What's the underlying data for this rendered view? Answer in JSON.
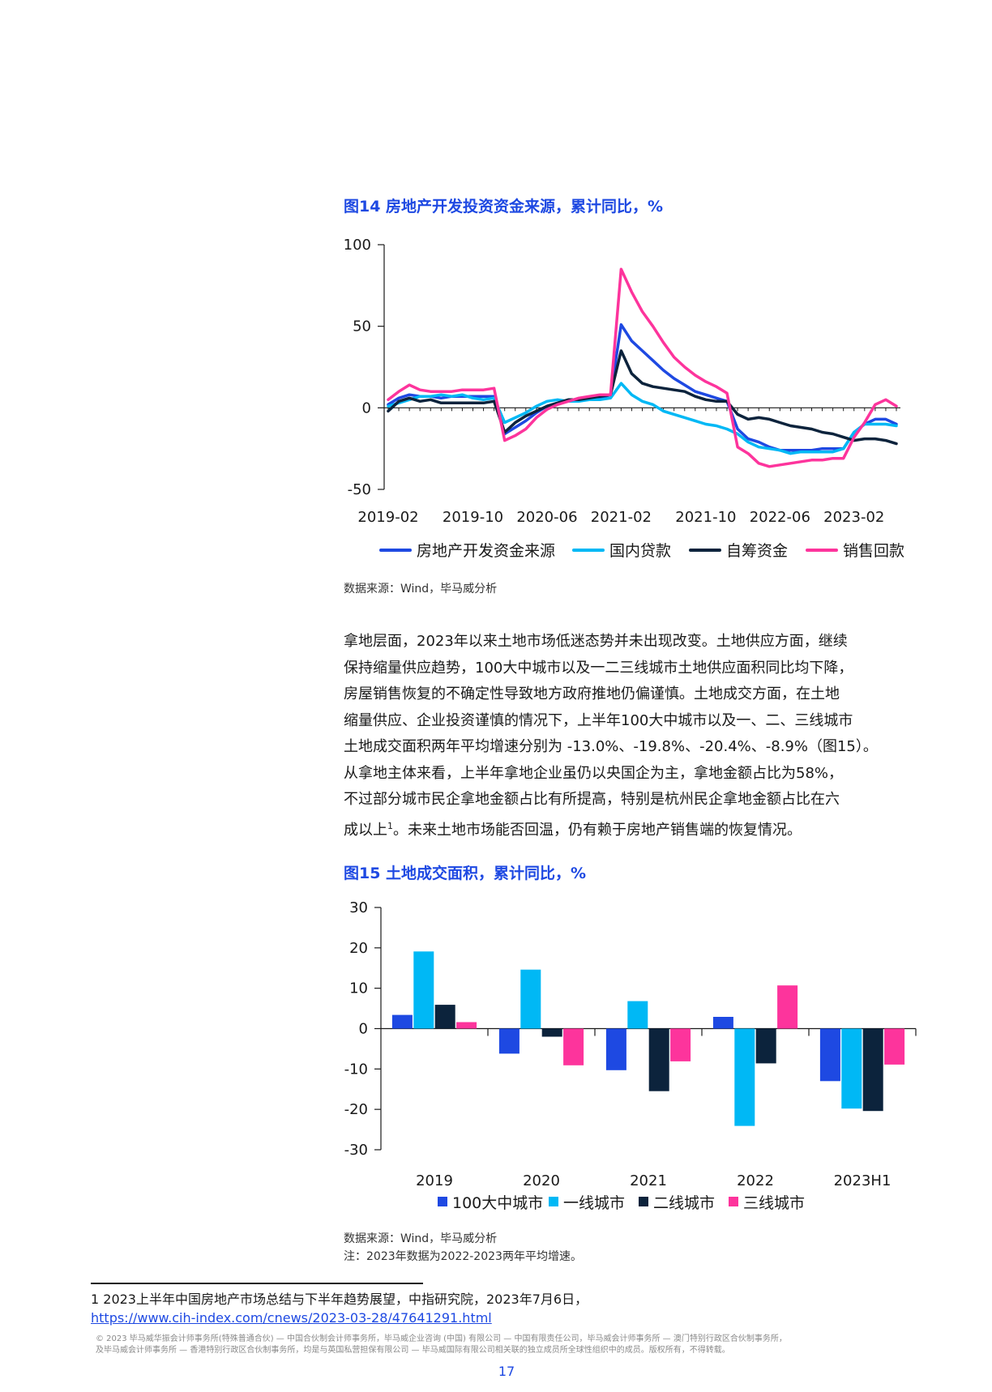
{
  "figure14": {
    "title": "图14  房地产开发投资资金来源，累计同比，%",
    "source": "数据来源：Wind，毕马威分析"
  },
  "body_text": [
    "拿地层面，2023年以来土地市场低迷态势并未出现改变。土地供应方面，继续",
    "保持缩量供应趋势，100大中城市以及一二三线城市土地供应面积同比均下降，",
    "房屋销售恢复的不确定性导致地方政府推地仍偏谨慎。土地成交方面，在土地",
    "缩量供应、企业投资谨慎的情况下，上半年100大中城市以及一、二、三线城市",
    "土地成交面积两年平均增速分别为 -13.0%、-19.8%、-20.4%、-8.9%（图15）。",
    "从拿地主体来看，上半年拿地企业虽仍以央国企为主，拿地金额占比为58%，",
    "不过部分城市民企拿地金额占比有所提高，特别是杭州民企拿地金额占比在六",
    "成以上",
    "1",
    "。未来土地市场能否回温，仍有赖于房地产销售端的恢复情况。"
  ],
  "figure15": {
    "title": "图15  土地成交面积，累计同比，%",
    "source": "数据来源：Wind，毕马威分析",
    "note": "注：2023年数据为2022-2023两年平均增速。"
  },
  "footnote": {
    "text": "1 2023上半年中国房地产市场总结与下半年趋势展望，中指研究院，2023年7月6日，",
    "link": "https://www.cih-index.com/cnews/2023-03-28/47641291.html"
  },
  "copyright": {
    "line1": "© 2023 毕马威华振会计师事务所(特殊普通合伙) — 中国合伙制会计师事务所，毕马威企业咨询 (中国) 有限公司 — 中国有限责任公司，毕马威会计师事务所 — 澳门特别行政区合伙制事务所，",
    "line2": "及毕马威会计师事务所 — 香港特别行政区合伙制事务所，均是与英国私营担保有限公司 — 毕马威国际有限公司相关联的独立成员所全球性组织中的成员。版权所有，不得转载。"
  },
  "page_number": "17",
  "chart_data": [
    {
      "type": "line",
      "x": [
        "2019-02",
        "2019-03",
        "2019-04",
        "2019-05",
        "2019-06",
        "2019-07",
        "2019-08",
        "2019-09",
        "2019-10",
        "2019-11",
        "2019-12",
        "2020-02",
        "2020-03",
        "2020-04",
        "2020-05",
        "2020-06",
        "2020-07",
        "2020-08",
        "2020-09",
        "2020-10",
        "2020-11",
        "2020-12",
        "2021-02",
        "2021-03",
        "2021-04",
        "2021-05",
        "2021-06",
        "2021-07",
        "2021-08",
        "2021-09",
        "2021-10",
        "2021-11",
        "2021-12",
        "2022-02",
        "2022-03",
        "2022-04",
        "2022-05",
        "2022-06",
        "2022-07",
        "2022-08",
        "2022-09",
        "2022-10",
        "2022-11",
        "2022-12",
        "2023-02",
        "2023-03",
        "2023-04",
        "2023-05",
        "2023-06"
      ],
      "x_tick_labels": [
        "2019-02",
        "2019-10",
        "2020-06",
        "2021-02",
        "2021-10",
        "2022-06",
        "2023-02"
      ],
      "ylim": [
        -50,
        100
      ],
      "y_ticks": [
        100,
        50,
        0,
        -50
      ],
      "legend_position": "bottom",
      "grid": false,
      "series": [
        {
          "name": "房地产开发资金来源",
          "color": "#1e49e2",
          "values": [
            2,
            6,
            8,
            7,
            7,
            6,
            7,
            7,
            7,
            7,
            7,
            -16,
            -12,
            -8,
            -3,
            1,
            3,
            4,
            5,
            5,
            6,
            8,
            51,
            41,
            35,
            29,
            23,
            18,
            14,
            10,
            8,
            6,
            4,
            -13,
            -19,
            -21,
            -24,
            -26,
            -26,
            -26,
            -26,
            -25,
            -25,
            -25,
            -15,
            -10,
            -7,
            -7,
            -10
          ]
        },
        {
          "name": "国内贷款",
          "color": "#00b8f5",
          "values": [
            1,
            3,
            5,
            7,
            7,
            8,
            7,
            8,
            6,
            5,
            6,
            -9,
            -6,
            -3,
            1,
            4,
            5,
            4,
            4,
            5,
            5,
            6,
            15,
            8,
            4,
            2,
            -2,
            -4,
            -6,
            -8,
            -10,
            -11,
            -13,
            -16,
            -21,
            -24,
            -25,
            -26,
            -28,
            -27,
            -27,
            -27,
            -27,
            -25,
            -15,
            -10,
            -10,
            -10,
            -11
          ]
        },
        {
          "name": "自筹资金",
          "color": "#0c233c",
          "values": [
            -2,
            4,
            6,
            4,
            5,
            3,
            3,
            3,
            3,
            3,
            4,
            -15,
            -9,
            -5,
            -2,
            1,
            3,
            5,
            5,
            6,
            7,
            8,
            35,
            21,
            15,
            13,
            12,
            11,
            10,
            7,
            5,
            4,
            4,
            -4,
            -7,
            -6,
            -7,
            -9,
            -11,
            -12,
            -13,
            -15,
            -16,
            -18,
            -20,
            -19,
            -19,
            -20,
            -22
          ]
        },
        {
          "name": "销售回款",
          "color": "#fd349c",
          "values": [
            5,
            10,
            14,
            11,
            10,
            10,
            10,
            11,
            11,
            11,
            12,
            -20,
            -17,
            -13,
            -6,
            -1,
            2,
            4,
            6,
            7,
            8,
            8,
            85,
            71,
            59,
            50,
            40,
            31,
            25,
            20,
            16,
            13,
            9,
            -24,
            -28,
            -34,
            -36,
            -35,
            -34,
            -33,
            -32,
            -32,
            -31,
            -31,
            -18,
            -9,
            2,
            5,
            1
          ]
        }
      ]
    },
    {
      "type": "bar",
      "categories": [
        "2019",
        "2020",
        "2021",
        "2022",
        "2023H1"
      ],
      "ylim": [
        -30,
        30
      ],
      "y_ticks": [
        30,
        20,
        10,
        0,
        -10,
        -20,
        -30
      ],
      "legend_position": "bottom",
      "grid": false,
      "series": [
        {
          "name": "100大中城市",
          "color": "#1e49e2",
          "values": [
            3.4,
            -6.2,
            -10.3,
            2.9,
            -13.0
          ]
        },
        {
          "name": "一线城市",
          "color": "#00b8f5",
          "values": [
            19.1,
            14.6,
            6.8,
            -24.1,
            -19.8
          ]
        },
        {
          "name": "二线城市",
          "color": "#0c233c",
          "values": [
            5.9,
            -2.0,
            -15.5,
            -8.6,
            -20.4
          ]
        },
        {
          "name": "三线城市",
          "color": "#fd349c",
          "values": [
            1.6,
            -9.1,
            -8.1,
            10.7,
            -8.9
          ]
        }
      ]
    }
  ]
}
